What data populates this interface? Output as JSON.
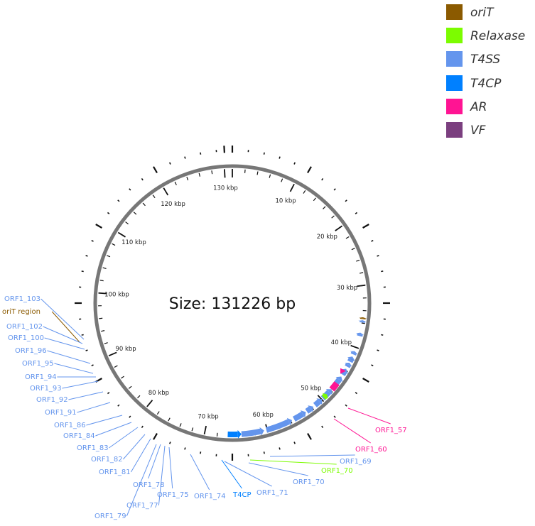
{
  "legend": [
    {
      "label": "oriT",
      "color": "#8B5A00"
    },
    {
      "label": "Relaxase",
      "color": "#7CFC00"
    },
    {
      "label": "T4SS",
      "color": "#6495ED"
    },
    {
      "label": "T4CP",
      "color": "#0080FF"
    },
    {
      "label": "AR",
      "color": "#FF1493"
    },
    {
      "label": "VF",
      "color": "#7B3F7F"
    }
  ],
  "plasmid": {
    "size_label": "Size: 131226 bp",
    "size_bp": 131226,
    "tick_labels": [
      "10 kbp",
      "20 kbp",
      "30 kbp",
      "40 kbp",
      "50 kbp",
      "60 kbp",
      "70 kbp",
      "80 kbp",
      "90 kbp",
      "100 kbp",
      "110 kbp",
      "120 kbp",
      "130 kbp"
    ]
  },
  "features": [
    {
      "label": "ORF1_103",
      "type": "T4SS"
    },
    {
      "label": "oriT region",
      "type": "oriT"
    },
    {
      "label": "ORF1_102",
      "type": "T4SS"
    },
    {
      "label": "ORF1_100",
      "type": "T4SS"
    },
    {
      "label": "ORF1_96",
      "type": "T4SS"
    },
    {
      "label": "ORF1_95",
      "type": "T4SS"
    },
    {
      "label": "ORF1_94",
      "type": "T4SS"
    },
    {
      "label": "ORF1_93",
      "type": "T4SS"
    },
    {
      "label": "ORF1_92",
      "type": "T4SS"
    },
    {
      "label": "ORF1_91",
      "type": "T4SS"
    },
    {
      "label": "ORF1_86",
      "type": "T4SS"
    },
    {
      "label": "ORF1_84",
      "type": "T4SS"
    },
    {
      "label": "ORF1_83",
      "type": "T4SS"
    },
    {
      "label": "ORF1_82",
      "type": "T4SS"
    },
    {
      "label": "ORF1_81",
      "type": "T4SS"
    },
    {
      "label": "ORF1_78",
      "type": "T4SS"
    },
    {
      "label": "ORF1_77",
      "type": "T4SS"
    },
    {
      "label": "ORF1_79",
      "type": "T4SS"
    },
    {
      "label": "ORF1_75",
      "type": "T4SS"
    },
    {
      "label": "ORF1_74",
      "type": "T4SS"
    },
    {
      "label": "T4CP",
      "type": "T4CP"
    },
    {
      "label": "ORF1_71",
      "type": "T4SS"
    },
    {
      "label": "ORF1_70",
      "type": "T4SS"
    },
    {
      "label": "ORF1_70",
      "type": "Relaxase"
    },
    {
      "label": "ORF1_69",
      "type": "T4SS"
    },
    {
      "label": "ORF1_60",
      "type": "AR"
    },
    {
      "label": "ORF1_57",
      "type": "AR"
    }
  ]
}
